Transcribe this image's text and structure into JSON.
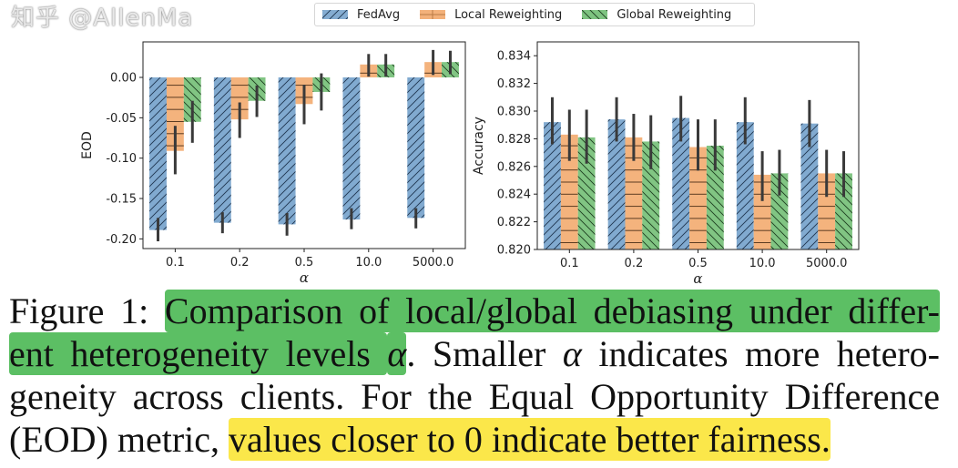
{
  "legend": {
    "items": [
      {
        "label": "FedAvg",
        "color": "#6f9ec9",
        "hatch": "diagonal-forward"
      },
      {
        "label": "Local Reweighting",
        "color": "#f2a96b",
        "hatch": "horizontal"
      },
      {
        "label": "Global Reweighting",
        "color": "#6fbd72",
        "hatch": "diagonal-back"
      }
    ]
  },
  "chart_data": [
    {
      "type": "bar",
      "xlabel": "α",
      "ylabel": "EOD",
      "categories": [
        "0.1",
        "0.2",
        "0.5",
        "10.0",
        "5000.0"
      ],
      "ylim": [
        -0.212,
        0.044
      ],
      "yticks": [
        "0.00",
        "-0.05",
        "-0.10",
        "-0.15",
        "-0.20"
      ],
      "ytick_values": [
        0,
        -0.05,
        -0.1,
        -0.15,
        -0.2
      ],
      "grid": false,
      "series": [
        {
          "name": "FedAvg",
          "values": [
            -0.189,
            -0.18,
            -0.182,
            -0.176,
            -0.174
          ],
          "err_low": [
            -0.203,
            -0.193,
            -0.196,
            -0.188,
            -0.187
          ],
          "err_high": [
            -0.174,
            -0.167,
            -0.168,
            -0.162,
            -0.162
          ]
        },
        {
          "name": "Local Reweighting",
          "values": [
            -0.091,
            -0.052,
            -0.033,
            0.016,
            0.019
          ],
          "err_low": [
            -0.12,
            -0.075,
            -0.058,
            0.001,
            0.003
          ],
          "err_high": [
            -0.06,
            -0.031,
            -0.009,
            0.029,
            0.034
          ]
        },
        {
          "name": "Global Reweighting",
          "values": [
            -0.055,
            -0.029,
            -0.018,
            0.016,
            0.019
          ],
          "err_low": [
            -0.081,
            -0.049,
            -0.041,
            0.001,
            0.004
          ],
          "err_high": [
            -0.029,
            -0.01,
            0.005,
            0.029,
            0.033
          ]
        }
      ]
    },
    {
      "type": "bar",
      "xlabel": "α",
      "ylabel": "Accuracy",
      "categories": [
        "0.1",
        "0.2",
        "0.5",
        "10.0",
        "5000.0"
      ],
      "ylim": [
        0.82,
        0.835
      ],
      "yticks": [
        "0.820",
        "0.822",
        "0.824",
        "0.826",
        "0.828",
        "0.830",
        "0.832",
        "0.834"
      ],
      "ytick_values": [
        0.82,
        0.822,
        0.824,
        0.826,
        0.828,
        0.83,
        0.832,
        0.834
      ],
      "grid": false,
      "series": [
        {
          "name": "FedAvg",
          "values": [
            0.8292,
            0.8294,
            0.8295,
            0.8292,
            0.8291
          ],
          "err_low": [
            0.8276,
            0.8278,
            0.8278,
            0.8276,
            0.8274
          ],
          "err_high": [
            0.831,
            0.831,
            0.8311,
            0.831,
            0.8308
          ]
        },
        {
          "name": "Local Reweighting",
          "values": [
            0.8283,
            0.8281,
            0.8274,
            0.8254,
            0.8255
          ],
          "err_low": [
            0.8264,
            0.8264,
            0.8257,
            0.8235,
            0.8238
          ],
          "err_high": [
            0.8301,
            0.8298,
            0.8294,
            0.8271,
            0.8272
          ]
        },
        {
          "name": "Global Reweighting",
          "values": [
            0.8281,
            0.8278,
            0.8275,
            0.8255,
            0.8255
          ],
          "err_low": [
            0.8262,
            0.8258,
            0.8257,
            0.8239,
            0.8238
          ],
          "err_high": [
            0.8301,
            0.8297,
            0.8294,
            0.8272,
            0.8271
          ]
        }
      ]
    }
  ],
  "caption": {
    "lines": [
      [
        {
          "text": "Figure 1: ",
          "hl": ""
        },
        {
          "text": "Comparison of local/global debiasing under differ-",
          "hl": "green"
        }
      ],
      [
        {
          "text": "ent heterogeneity levels ",
          "hl": "green"
        },
        {
          "text": "α",
          "hl": "green",
          "italic": true
        },
        {
          "text": ". Smaller ",
          "hl": ""
        },
        {
          "text": "α",
          "hl": "",
          "italic": true
        },
        {
          "text": " indicates more hetero-",
          "hl": ""
        }
      ],
      [
        {
          "text": "geneity across clients. For the Equal Opportunity Difference",
          "hl": ""
        }
      ],
      [
        {
          "text": "(EOD) metric, ",
          "hl": ""
        },
        {
          "text": "values closer to 0 indicate better fairness.",
          "hl": "yellow"
        }
      ]
    ]
  },
  "watermark": "知乎 @AllenMa"
}
